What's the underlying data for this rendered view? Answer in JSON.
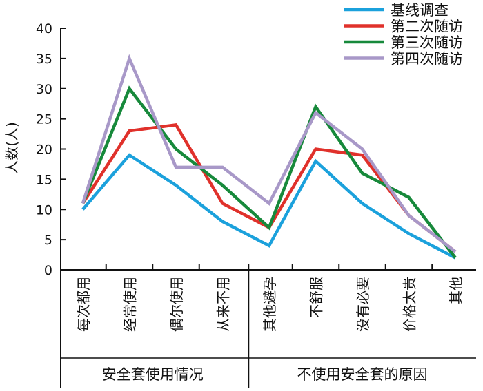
{
  "chart_data": {
    "type": "line",
    "ylabel": "人数(人)",
    "ylim": [
      0,
      40
    ],
    "yticks": [
      0,
      5,
      10,
      15,
      20,
      25,
      30,
      35,
      40
    ],
    "categories": [
      "每次都用",
      "经常使用",
      "偶尔使用",
      "从来不用",
      "其他避孕",
      "不舒服",
      "没有必要",
      "价格太贵",
      "其他"
    ],
    "groups": [
      {
        "label": "安全套使用情况",
        "count": 4
      },
      {
        "label": "不使用安全套的原因",
        "count": 5
      }
    ],
    "series": [
      {
        "name": "基线调查",
        "color": "#1ba1dc",
        "values": [
          10,
          19,
          14,
          8,
          4,
          18,
          11,
          6,
          2
        ]
      },
      {
        "name": "第二次随访",
        "color": "#e0312b",
        "values": [
          11,
          23,
          24,
          11,
          7,
          20,
          19,
          9,
          3
        ]
      },
      {
        "name": "第三次随访",
        "color": "#17893b",
        "values": [
          11,
          30,
          20,
          14,
          7,
          27,
          16,
          12,
          2
        ]
      },
      {
        "name": "第四次随访",
        "color": "#a898c8",
        "values": [
          11,
          35,
          17,
          17,
          11,
          26,
          20,
          9,
          3
        ]
      }
    ],
    "legend_position": "top-right"
  }
}
